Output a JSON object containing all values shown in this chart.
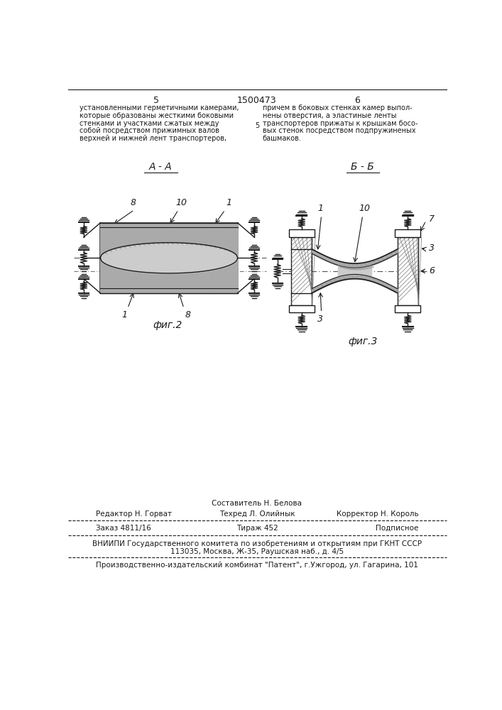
{
  "page_number_left": "5",
  "page_number_center": "1500473",
  "page_number_right": "6",
  "top_text_left": [
    "установленными герметичными камерами,",
    "которые образованы жесткими боковыми",
    "стенками и участками сжатых между",
    "собой посредством прижимных валов",
    "верхней и нижней лент транспортеров,"
  ],
  "top_text_right": [
    "причем в боковых стенках камер выпол-",
    "нены отверстия, а эластиные ленты",
    "транспортеров прижаты к крышкам бoco-",
    "вых стенок посредством подпружиненых",
    "башмаков."
  ],
  "line_number_5": "5",
  "fig2_label": "А - А",
  "fig3_label": "Б - Б",
  "fig2_caption": "фиг.2",
  "fig3_caption": "фиг.3",
  "editor_line": "Редактор Н. Горват",
  "composer_line": "Составитель Н. Белова",
  "techred_line": "Техред Л. Олийнык",
  "corrector_line": "Корректор Н. Король",
  "order_line": "Заказ 4811/16",
  "circulation_line": "Тираж 452",
  "signed_line": "Подписное",
  "vniipи_line1": "ВНИИПИ Государственного комитета по изобретениям и открытиям при ГКНТ СССР",
  "vniipи_line2": "113035, Москва, Ж-35, Раушская наб., д. 4/5",
  "publisher_line": "Производственно-издательский комбинат \"Патент\", г.Ужгород, ул. Гагарина, 101",
  "bg_color": "#ffffff",
  "text_color": "#1a1a1a",
  "line_color": "#1a1a1a",
  "gray_fill": "#aaaaaa",
  "hatch_color": "#555555"
}
